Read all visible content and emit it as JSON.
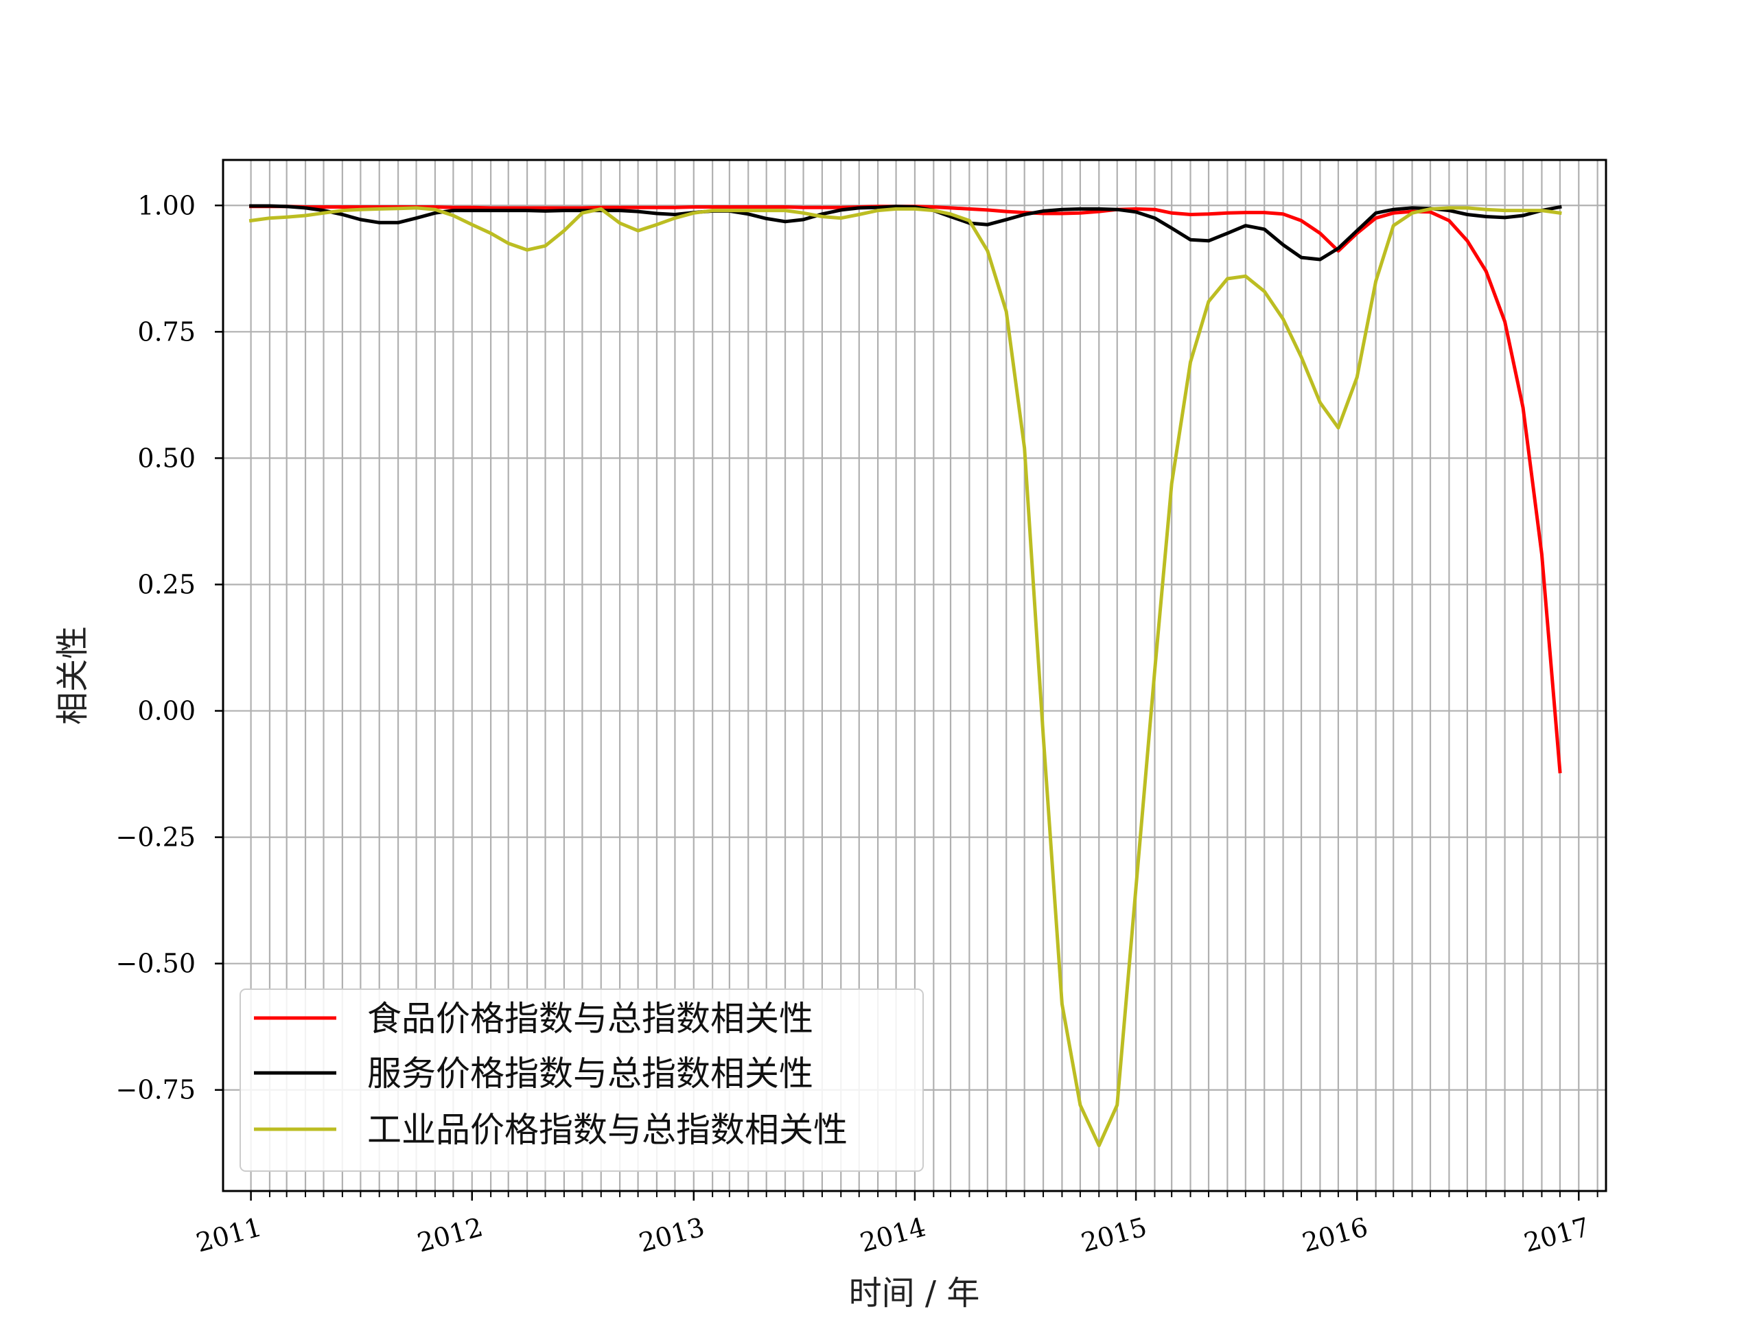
{
  "chart_data": {
    "type": "line",
    "xlabel": "时间 / 年",
    "ylabel": "相关性",
    "x_tick_labels": [
      "2011",
      "2012",
      "2013",
      "2014",
      "2015",
      "2016",
      "2017"
    ],
    "y_tick_labels": [
      "1.00",
      "0.75",
      "0.50",
      "0.25",
      "0.00",
      "−0.25",
      "−0.50",
      "−0.75"
    ],
    "y_ticks": [
      1.0,
      0.75,
      0.5,
      0.25,
      0.0,
      -0.25,
      -0.5,
      -0.75
    ],
    "xlim": [
      "2010-11-16",
      "2017-02-15"
    ],
    "ylim": [
      -0.95,
      1.09
    ],
    "grid": true,
    "grid_minor_x": "monthly",
    "legend_position": "lower-left",
    "x": [
      "2011-01",
      "2011-02",
      "2011-03",
      "2011-04",
      "2011-05",
      "2011-06",
      "2011-07",
      "2011-08",
      "2011-09",
      "2011-10",
      "2011-11",
      "2011-12",
      "2012-01",
      "2012-02",
      "2012-03",
      "2012-04",
      "2012-05",
      "2012-06",
      "2012-07",
      "2012-08",
      "2012-09",
      "2012-10",
      "2012-11",
      "2012-12",
      "2013-01",
      "2013-02",
      "2013-03",
      "2013-04",
      "2013-05",
      "2013-06",
      "2013-07",
      "2013-08",
      "2013-09",
      "2013-10",
      "2013-11",
      "2013-12",
      "2014-01",
      "2014-02",
      "2014-03",
      "2014-04",
      "2014-05",
      "2014-06",
      "2014-07",
      "2014-08",
      "2014-09",
      "2014-10",
      "2014-11",
      "2014-12",
      "2015-01",
      "2015-02",
      "2015-03",
      "2015-04",
      "2015-05",
      "2015-06",
      "2015-07",
      "2015-08",
      "2015-09",
      "2015-10",
      "2015-11",
      "2015-12",
      "2016-01",
      "2016-02",
      "2016-03",
      "2016-04",
      "2016-05",
      "2016-06",
      "2016-07",
      "2016-08",
      "2016-09",
      "2016-10",
      "2016-11",
      "2016-12"
    ],
    "series": [
      {
        "name": "食品价格指数与总指数相关性",
        "color": "#ff0000",
        "values": [
          0.998,
          0.998,
          0.998,
          0.997,
          0.997,
          0.997,
          0.997,
          0.997,
          0.997,
          0.997,
          0.997,
          0.996,
          0.996,
          0.995,
          0.995,
          0.995,
          0.995,
          0.995,
          0.995,
          0.996,
          0.996,
          0.996,
          0.996,
          0.996,
          0.997,
          0.997,
          0.997,
          0.997,
          0.997,
          0.997,
          0.996,
          0.996,
          0.996,
          0.997,
          0.998,
          0.998,
          0.998,
          0.997,
          0.995,
          0.993,
          0.991,
          0.988,
          0.986,
          0.984,
          0.984,
          0.985,
          0.988,
          0.992,
          0.993,
          0.992,
          0.985,
          0.982,
          0.983,
          0.985,
          0.986,
          0.986,
          0.983,
          0.97,
          0.945,
          0.91,
          0.945,
          0.975,
          0.985,
          0.988,
          0.987,
          0.97,
          0.93,
          0.87,
          0.77,
          0.6,
          0.31,
          -0.12
        ]
      },
      {
        "name": "服务价格指数与总指数相关性",
        "color": "#000000",
        "values": [
          0.999,
          0.999,
          0.998,
          0.995,
          0.99,
          0.982,
          0.972,
          0.966,
          0.966,
          0.975,
          0.985,
          0.99,
          0.99,
          0.99,
          0.99,
          0.99,
          0.989,
          0.99,
          0.99,
          0.99,
          0.99,
          0.988,
          0.984,
          0.982,
          0.986,
          0.989,
          0.989,
          0.983,
          0.974,
          0.968,
          0.972,
          0.983,
          0.991,
          0.995,
          0.996,
          0.998,
          0.997,
          0.99,
          0.978,
          0.965,
          0.962,
          0.972,
          0.982,
          0.989,
          0.992,
          0.993,
          0.993,
          0.992,
          0.987,
          0.975,
          0.955,
          0.932,
          0.93,
          0.945,
          0.96,
          0.953,
          0.922,
          0.897,
          0.893,
          0.915,
          0.95,
          0.985,
          0.992,
          0.995,
          0.994,
          0.99,
          0.982,
          0.978,
          0.976,
          0.98,
          0.99,
          0.997
        ]
      },
      {
        "name": "工业品价格指数与总指数相关性",
        "color": "#bcbd22",
        "values": [
          0.97,
          0.975,
          0.977,
          0.98,
          0.985,
          0.99,
          0.992,
          0.993,
          0.994,
          0.995,
          0.992,
          0.98,
          0.962,
          0.945,
          0.925,
          0.912,
          0.92,
          0.95,
          0.985,
          0.993,
          0.965,
          0.95,
          0.962,
          0.975,
          0.985,
          0.99,
          0.99,
          0.99,
          0.99,
          0.99,
          0.985,
          0.978,
          0.975,
          0.982,
          0.99,
          0.993,
          0.993,
          0.99,
          0.983,
          0.97,
          0.91,
          0.79,
          0.52,
          -0.05,
          -0.58,
          -0.78,
          -0.86,
          -0.78,
          -0.35,
          0.08,
          0.45,
          0.69,
          0.81,
          0.855,
          0.86,
          0.83,
          0.775,
          0.7,
          0.61,
          0.56,
          0.66,
          0.85,
          0.96,
          0.985,
          0.993,
          0.995,
          0.995,
          0.992,
          0.99,
          0.99,
          0.99,
          0.985
        ]
      }
    ]
  }
}
